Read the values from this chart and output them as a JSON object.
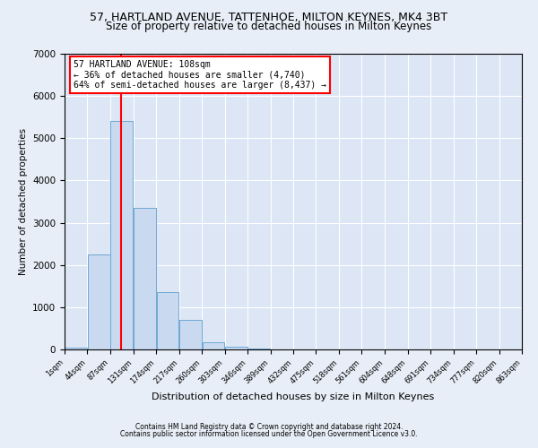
{
  "title": "57, HARTLAND AVENUE, TATTENHOE, MILTON KEYNES, MK4 3BT",
  "subtitle": "Size of property relative to detached houses in Milton Keynes",
  "xlabel": "Distribution of detached houses by size in Milton Keynes",
  "ylabel": "Number of detached properties",
  "footnote1": "Contains HM Land Registry data © Crown copyright and database right 2024.",
  "footnote2": "Contains public sector information licensed under the Open Government Licence v3.0.",
  "annotation_line1": "57 HARTLAND AVENUE: 108sqm",
  "annotation_line2": "← 36% of detached houses are smaller (4,740)",
  "annotation_line3": "64% of semi-detached houses are larger (8,437) →",
  "bar_color": "#c9d9f0",
  "bar_edge_color": "#6fa8d4",
  "red_line_x": 108,
  "bins": [
    1,
    44,
    87,
    131,
    174,
    217,
    260,
    303,
    346,
    389,
    432,
    475,
    518,
    561,
    604,
    648,
    691,
    734,
    777,
    820,
    863
  ],
  "bin_labels": [
    "1sqm",
    "44sqm",
    "87sqm",
    "131sqm",
    "174sqm",
    "217sqm",
    "260sqm",
    "303sqm",
    "346sqm",
    "389sqm",
    "432sqm",
    "475sqm",
    "518sqm",
    "561sqm",
    "604sqm",
    "648sqm",
    "691sqm",
    "734sqm",
    "777sqm",
    "820sqm",
    "863sqm"
  ],
  "bar_heights": [
    50,
    2250,
    5400,
    3350,
    1350,
    700,
    175,
    70,
    25,
    8,
    3,
    1,
    0,
    0,
    0,
    0,
    0,
    0,
    0,
    0
  ],
  "ylim": [
    0,
    7000
  ],
  "yticks": [
    0,
    1000,
    2000,
    3000,
    4000,
    5000,
    6000,
    7000
  ],
  "bg_color": "#e8eef7",
  "plot_bg": "#dce6f5",
  "title_fontsize": 9,
  "subtitle_fontsize": 8.5
}
